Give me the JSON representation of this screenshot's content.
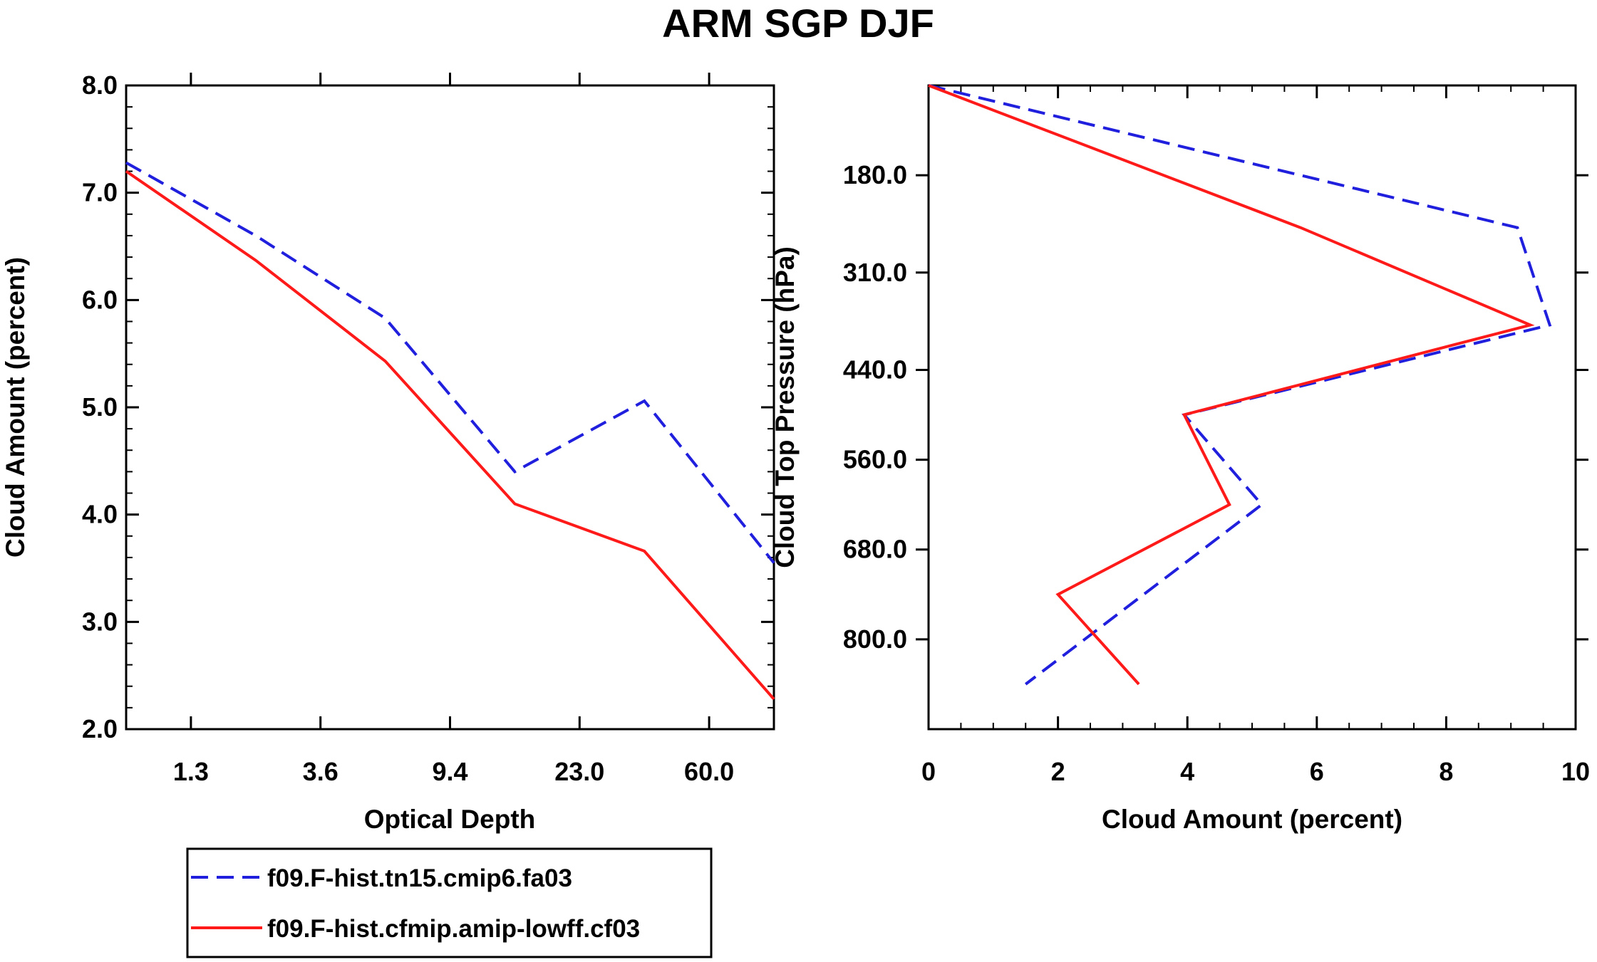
{
  "title": "ARM SGP DJF",
  "colors": {
    "series_1": "#1f1fdd",
    "series_2": "#ff1a1a",
    "axis": "#000000"
  },
  "legend": {
    "entries": [
      {
        "label": "f09.F-hist.tn15.cmip6.fa03",
        "style": "dashed",
        "color": "#1f1fdd"
      },
      {
        "label": "f09.F-hist.cfmip.amip-lowff.cf03",
        "style": "solid",
        "color": "#ff1a1a"
      }
    ]
  },
  "chart_data": [
    {
      "type": "line",
      "xlabel": "Optical Depth",
      "ylabel": "Cloud Amount (percent)",
      "x_categories": [
        "",
        "1.3",
        "",
        "3.6",
        "",
        "9.4",
        "",
        "23.0",
        "",
        "60.0",
        "",
        ""
      ],
      "x_tick_labels": [
        "1.3",
        "3.6",
        "9.4",
        "23.0",
        "60.0"
      ],
      "xlim": [
        0,
        5
      ],
      "ylim": [
        2.0,
        8.0
      ],
      "y_tick_labels": [
        "2.0",
        "3.0",
        "4.0",
        "5.0",
        "6.0",
        "7.0",
        "8.0"
      ],
      "y_ticks": [
        2,
        3,
        4,
        5,
        6,
        7,
        8
      ],
      "x_tick_positions": [
        0.5,
        1.5,
        2.5,
        3.5,
        4.5
      ],
      "series": [
        {
          "name": "f09.F-hist.tn15.cmip6.fa03",
          "x": [
            0,
            1,
            2,
            3,
            4,
            5
          ],
          "values": [
            7.28,
            6.6,
            5.83,
            4.4,
            5.06,
            3.55
          ]
        },
        {
          "name": "f09.F-hist.cfmip.amip-lowff.cf03",
          "x": [
            0,
            1,
            2,
            3,
            4,
            5
          ],
          "values": [
            7.2,
            6.37,
            5.43,
            4.1,
            3.66,
            2.28
          ]
        }
      ]
    },
    {
      "type": "line",
      "xlabel": "Cloud Amount (percent)",
      "ylabel": "Cloud Top Pressure (hPa)",
      "xlim": [
        0,
        10
      ],
      "x_ticks": [
        0,
        2,
        4,
        6,
        8,
        10
      ],
      "x_tick_labels": [
        "0",
        "2",
        "4",
        "6",
        "8",
        "10"
      ],
      "ylim": [
        60.0,
        920.0
      ],
      "y_reversed": true,
      "y_ticks": [
        180,
        310,
        440,
        560,
        680,
        800
      ],
      "y_tick_labels": [
        "180.0",
        "310.0",
        "440.0",
        "560.0",
        "680.0",
        "800.0"
      ],
      "series": [
        {
          "name": "f09.F-hist.tn15.cmip6.fa03",
          "x": [
            0.0,
            9.1,
            9.6,
            3.95,
            5.15,
            1.5
          ],
          "y": [
            60,
            250,
            380,
            500,
            620,
            860
          ]
        },
        {
          "name": "f09.F-hist.cfmip.amip-lowff.cf03",
          "x": [
            0.0,
            5.75,
            9.3,
            3.95,
            4.65,
            2.0,
            3.25
          ],
          "y": [
            60,
            250,
            380,
            500,
            620,
            740,
            860
          ]
        }
      ]
    }
  ]
}
